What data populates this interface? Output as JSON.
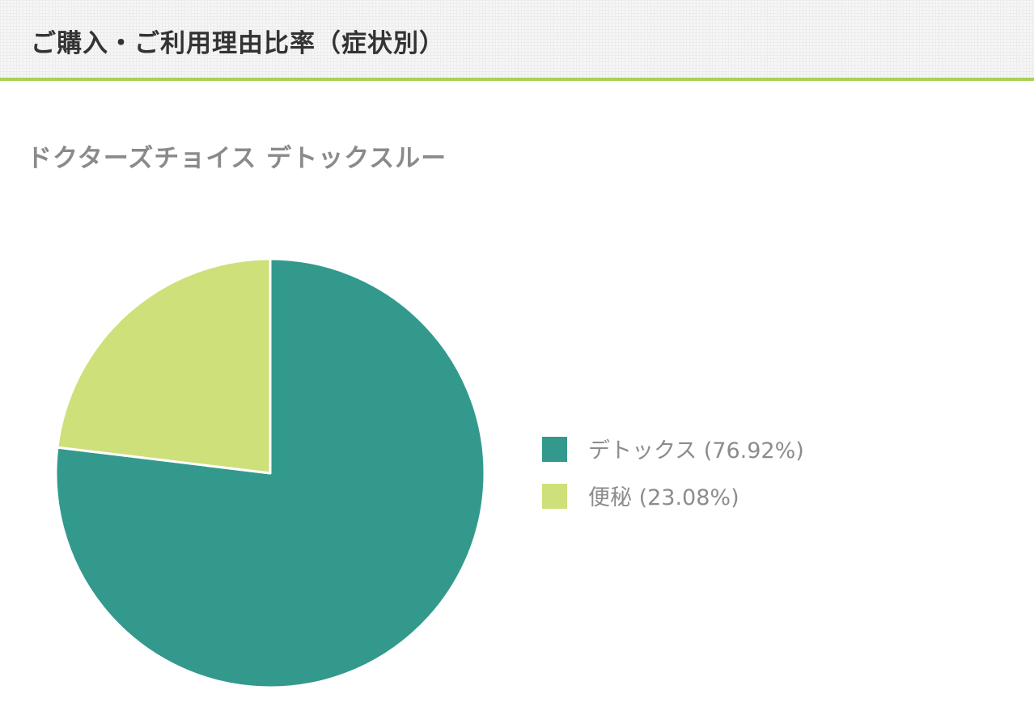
{
  "header": {
    "title": "ご購入・ご利用理由比率（症状別）"
  },
  "chart_data": {
    "type": "pie",
    "title": "ドクターズチョイス デトックスルー",
    "slices": [
      {
        "label": "デトックス (76.92%)",
        "value": 76.92,
        "color": "#33998d"
      },
      {
        "label": "便秘 (23.08%)",
        "value": 23.08,
        "color": "#cee07a"
      }
    ],
    "start_angle_deg": 0,
    "direction": "clockwise",
    "legend_position": "right"
  },
  "colors": {
    "accent_line": "#a9d05a"
  }
}
